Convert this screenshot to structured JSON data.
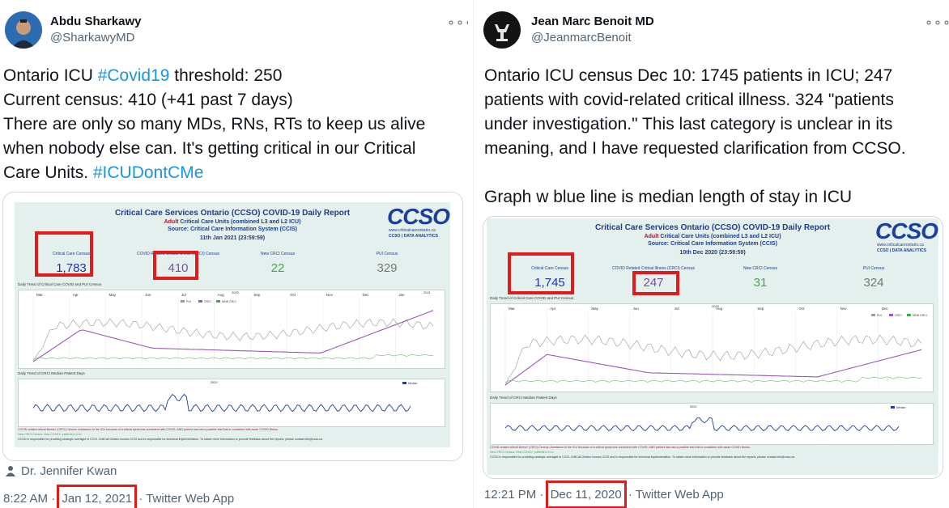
{
  "tweets": [
    {
      "author": {
        "name": "Abdu Sharkawy",
        "handle": "@SharkawyMD"
      },
      "more_glyph": "∘∘∘",
      "text_lines": [
        [
          {
            "t": "Ontario ICU "
          },
          {
            "t": "#Covid19",
            "tag": true
          },
          {
            "t": " threshold: 250"
          }
        ],
        [
          {
            "t": "Current census: 410 (+41 past 7 days)"
          }
        ],
        [
          {
            "t": "There are only so many MDs, RNs, RTs to keep us alive"
          }
        ],
        [
          {
            "t": "when nobody else can. It's getting critical in our Critical"
          }
        ],
        [
          {
            "t": "Care Units. "
          },
          {
            "t": "#ICUDontCMe",
            "tag": true
          }
        ]
      ],
      "report": {
        "title": "Critical Care Services Ontario (CCSO) COVID-19 Daily Report",
        "adult": "Adult",
        "subtitle": " Critical Care Units (combined L3 and L2 ICU)",
        "source": "Source: Critical Care Information System (CCIS)",
        "date": "11th Jan 2021 (23:59:59)",
        "logo": "CCSO",
        "logo_url": "www.criticalcareontario.ca",
        "logo_tag": "CCSO | DATA ANALYTICS",
        "census": [
          {
            "label": "Critical Care Census",
            "value": "1,783",
            "color": "#2233aa"
          },
          {
            "label": "COVID Related Critical Illness (CRCI) Census",
            "value": "410",
            "color": "#7a4fa0"
          },
          {
            "label": "New CRCI Census",
            "value": "22",
            "color": "#4aa54a"
          },
          {
            "label": "PUI Census",
            "value": "329",
            "color": "#777777"
          }
        ],
        "trend_label": "Daily Trend of Critical Care COVID and PUI Census",
        "median_label": "Daily Trend of CRCI Median Patient Days",
        "year_a": "2020",
        "year_b": "2021",
        "months": [
          "Mar",
          "Apr",
          "May",
          "Jun",
          "Jul",
          "Aug",
          "Sep",
          "Oct",
          "Nov",
          "Dec",
          "Jan"
        ],
        "legend": [
          "PUI",
          "CRCI",
          "NEW CRCI"
        ],
        "median_legend": "Median",
        "foot1": "COVID-related critical illness* (CRCI) Census: Admission to the ICU because of a critical syndrome consistent with COVID, AND patient has had a positive test that is consistent with acute COVID illness.",
        "foot2": "New CRCI Census: New COVID+ patients to ICU",
        "foot3": "CCSO is responsible for providing strategic oversight to CCIS. CritiCall Ontario houses CCIS and is responsible for technical implementation. To obtain more information or provide feedback about the reports, please contact info@ccso.ca"
      },
      "attribution": "Dr. Jennifer Kwan",
      "time": "8:22 AM",
      "date": "Jan 12, 2021",
      "sep": "·",
      "client": "Twitter Web App"
    },
    {
      "author": {
        "name": "Jean Marc Benoit MD",
        "handle": "@JeanmarcBenoit"
      },
      "more_glyph": "∘∘∘",
      "text_lines": [
        [
          {
            "t": "Ontario ICU census Dec 10: 1745 patients in ICU; 247"
          }
        ],
        [
          {
            "t": "patients with covid-related critical illness. 324 \"patients"
          }
        ],
        [
          {
            "t": "under investigation.\" This last category is unclear in its"
          }
        ],
        [
          {
            "t": "meaning, and I have requested clarification from CCSO."
          }
        ],
        [
          {
            "t": ""
          }
        ],
        [
          {
            "t": "Graph w blue line is median length of stay in ICU"
          }
        ]
      ],
      "report": {
        "title": "Critical Care Services Ontario (CCSO) COVID-19 Daily Report",
        "adult": "Adult",
        "subtitle": " Critical Care Units (combined L3 and L2 ICU)",
        "source": "Source: Critical Care Information System (CCIS)",
        "date": "10th Dec 2020 (23:59:59)",
        "logo": "CCSO",
        "logo_url": "www.criticalcareontario.ca",
        "logo_tag": "CCSO | DATA ANALYTICS",
        "census": [
          {
            "label": "Critical Care Census",
            "value": "1,745",
            "color": "#2233aa"
          },
          {
            "label": "COVID Related Critical Illness (CRCI) Census",
            "value": "247",
            "color": "#7a4fa0"
          },
          {
            "label": "New CRCI Census",
            "value": "31",
            "color": "#4aa54a"
          },
          {
            "label": "PUI Census",
            "value": "324",
            "color": "#777777"
          }
        ],
        "trend_label": "Daily Trend of Critical Care COVID and PUI Census",
        "median_label": "Daily Trend of CRCI Median Patient Days",
        "year_a": "2020",
        "year_b": "",
        "months": [
          "Mar",
          "Apr",
          "May",
          "Jun",
          "Jul",
          "Aug",
          "Sep",
          "Oct",
          "Nov",
          "Dec"
        ],
        "legend": [
          "PUI",
          "CRCI",
          "NEW CRCI"
        ],
        "median_legend": "Median",
        "foot1": "COVID-related critical illness* (CRCI) Census: Admission to the ICU because of a critical syndrome consistent with COVID, AND patient has had a positive test that is consistent with acute COVID illness.",
        "foot2": "New CRCI Census: New COVID+ patients to ICU",
        "foot3": "CCSO is responsible for providing strategic oversight to CCIS. CritiCall Ontario houses CCIS and is responsible for technical implementation. To obtain more information or provide feedback about the reports, please contact info@ccso.ca"
      },
      "time": "12:21 PM",
      "date": "Dec 11, 2020",
      "sep": "·",
      "client": "Twitter Web App"
    }
  ],
  "colors": {
    "link": "#1b95e0",
    "highlight": "#e11b1b",
    "pui": "#999999",
    "crci": "#9b59b6",
    "new_crci": "#4aa54a",
    "median": "#1f3f8f"
  }
}
